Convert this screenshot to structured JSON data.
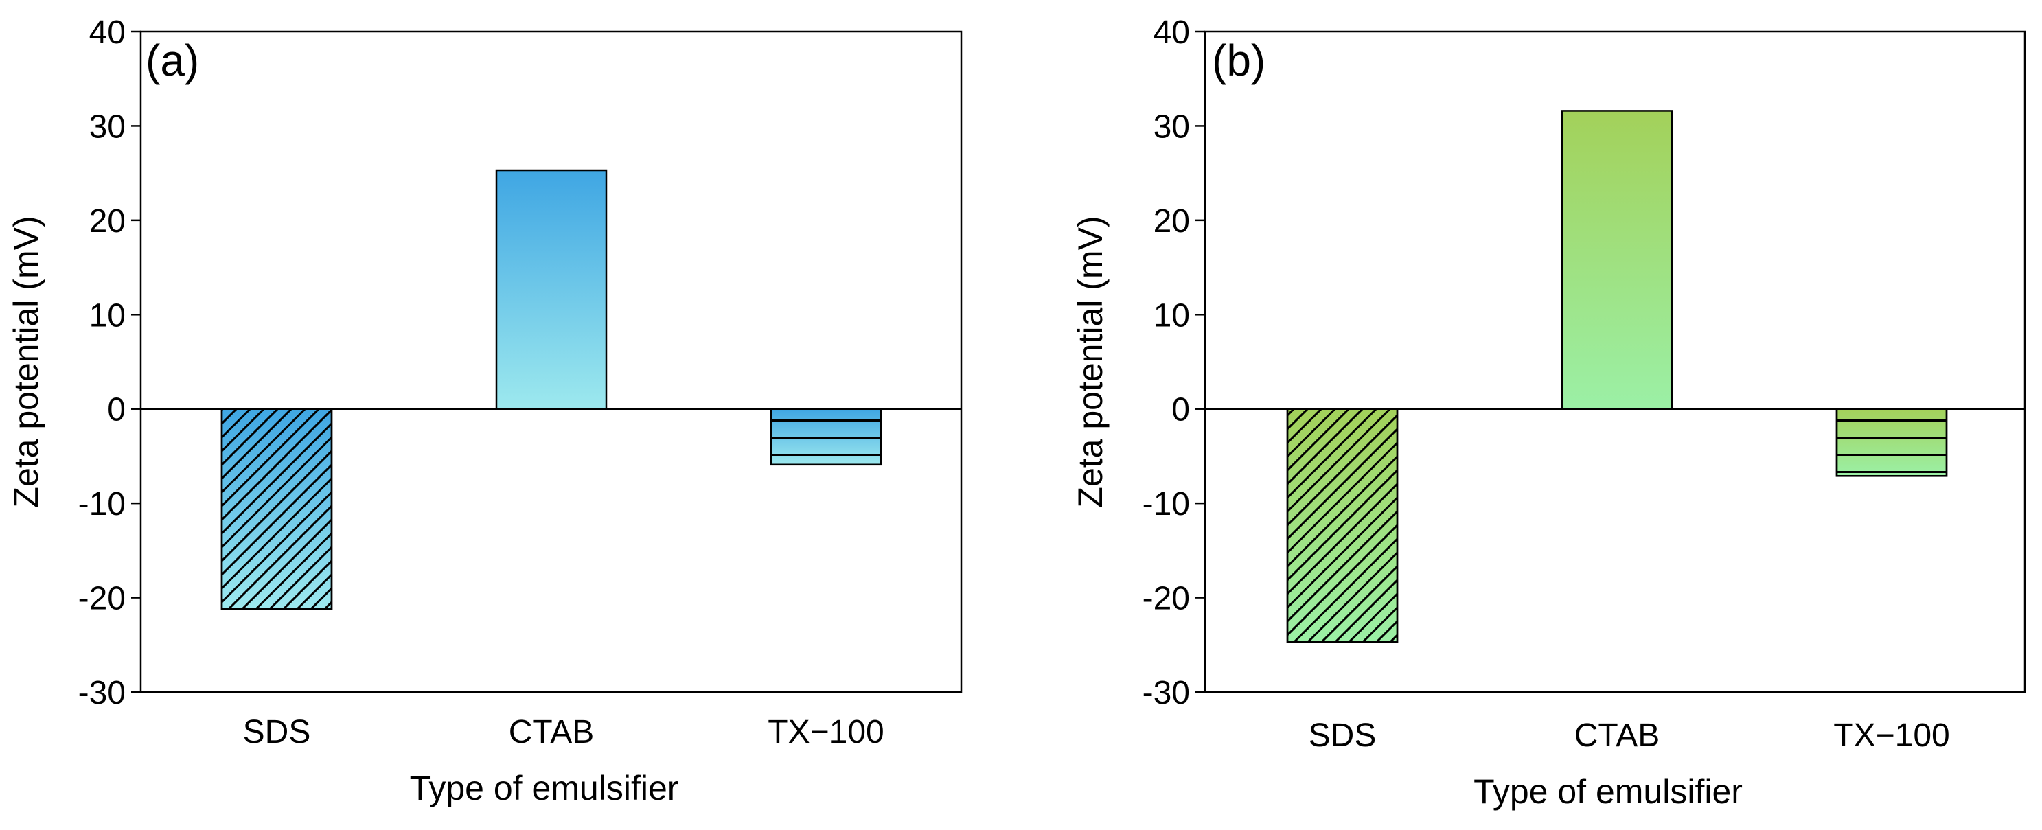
{
  "colors": {
    "panel_a_top": "#3fa6e3",
    "panel_a_bottom": "#9de9ee",
    "panel_b_top": "#a3d15a",
    "panel_b_bottom": "#9bf0a6",
    "axis": "#000000"
  },
  "chart_data": [
    {
      "type": "bar",
      "panel_label": "(a)",
      "categories": [
        "SDS",
        "CTAB",
        "TX−100"
      ],
      "values": [
        -21.2,
        25.3,
        -5.9
      ],
      "patterns": [
        "diagonal",
        "none",
        "horizontal"
      ],
      "xlabel": "Type of emulsifier",
      "ylabel": "Zeta potential (mV)",
      "ylim": [
        -30,
        40
      ],
      "yticks": [
        -30,
        -20,
        -10,
        0,
        10,
        20,
        30,
        40
      ],
      "ytick_labels": [
        "-30",
        "-20",
        "-10",
        "0",
        "10",
        "20",
        "30",
        "40"
      ],
      "grid": false,
      "legend": false
    },
    {
      "type": "bar",
      "panel_label": "(b)",
      "categories": [
        "SDS",
        "CTAB",
        "TX−100"
      ],
      "values": [
        -24.7,
        31.6,
        -7.1
      ],
      "patterns": [
        "diagonal",
        "none",
        "horizontal"
      ],
      "xlabel": "Type of emulsifier",
      "ylabel": "Zeta potential (mV)",
      "ylim": [
        -30,
        40
      ],
      "yticks": [
        -30,
        -20,
        -10,
        0,
        10,
        20,
        30,
        40
      ],
      "ytick_labels": [
        "-30",
        "-20",
        "-10",
        "0",
        "10",
        "20",
        "30",
        "40"
      ],
      "grid": false,
      "legend": false
    }
  ]
}
